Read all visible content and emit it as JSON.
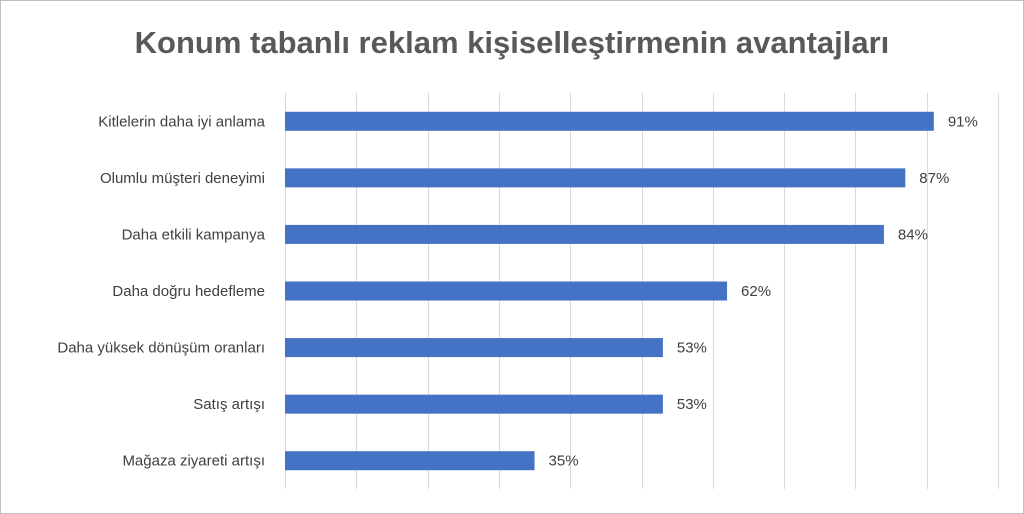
{
  "chart_data": {
    "type": "bar",
    "orientation": "horizontal",
    "title": "Konum tabanlı reklam kişiselleştirmenin avantajları",
    "categories": [
      "Kitlelerin daha iyi anlama",
      "Olumlu müşteri deneyimi",
      "Daha etkili kampanya",
      "Daha doğru hedefleme",
      "Daha yüksek dönüşüm oranları",
      "Satış artışı",
      "Mağaza ziyareti artışı"
    ],
    "values": [
      91,
      87,
      84,
      62,
      53,
      53,
      35
    ],
    "value_labels": [
      "91%",
      "87%",
      "84%",
      "62%",
      "53%",
      "53%",
      "35%"
    ],
    "xlim": [
      0,
      100
    ],
    "grid": true,
    "legend": "none",
    "bar_color": "#4472c4",
    "gridline_color": "#d9d9d9"
  }
}
